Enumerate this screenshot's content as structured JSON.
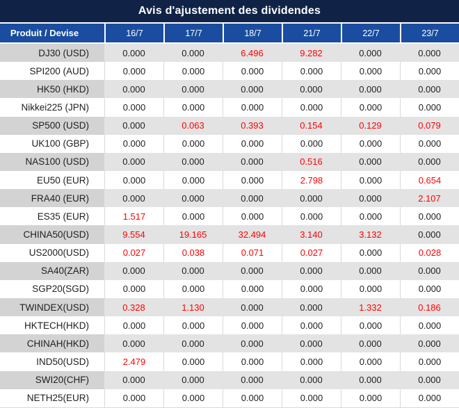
{
  "title": "Avis d'ajustement des dividendes",
  "table": {
    "product_header": "Produit / Devise",
    "date_headers": [
      "16/7",
      "17/7",
      "18/7",
      "21/7",
      "22/7",
      "23/7"
    ],
    "rows": [
      {
        "product": "DJ30 (USD)",
        "values": [
          "0.000",
          "0.000",
          "6.496",
          "9.282",
          "0.000",
          "0.000"
        ]
      },
      {
        "product": "SPI200 (AUD)",
        "values": [
          "0.000",
          "0.000",
          "0.000",
          "0.000",
          "0.000",
          "0.000"
        ]
      },
      {
        "product": "HK50 (HKD)",
        "values": [
          "0.000",
          "0.000",
          "0.000",
          "0.000",
          "0.000",
          "0.000"
        ]
      },
      {
        "product": "Nikkei225 (JPN)",
        "values": [
          "0.000",
          "0.000",
          "0.000",
          "0.000",
          "0.000",
          "0.000"
        ]
      },
      {
        "product": "SP500 (USD)",
        "values": [
          "0.000",
          "0.063",
          "0.393",
          "0.154",
          "0.129",
          "0.079"
        ]
      },
      {
        "product": "UK100 (GBP)",
        "values": [
          "0.000",
          "0.000",
          "0.000",
          "0.000",
          "0.000",
          "0.000"
        ]
      },
      {
        "product": "NAS100 (USD)",
        "values": [
          "0.000",
          "0.000",
          "0.000",
          "0.516",
          "0.000",
          "0.000"
        ]
      },
      {
        "product": "EU50 (EUR)",
        "values": [
          "0.000",
          "0.000",
          "0.000",
          "2.798",
          "0.000",
          "0.654"
        ]
      },
      {
        "product": "FRA40 (EUR)",
        "values": [
          "0.000",
          "0.000",
          "0.000",
          "0.000",
          "0.000",
          "2.107"
        ]
      },
      {
        "product": "ES35 (EUR)",
        "values": [
          "1.517",
          "0.000",
          "0.000",
          "0.000",
          "0.000",
          "0.000"
        ]
      },
      {
        "product": "CHINA50(USD)",
        "values": [
          "9.554",
          "19.165",
          "32.494",
          "3.140",
          "3.132",
          "0.000"
        ]
      },
      {
        "product": "US2000(USD)",
        "values": [
          "0.027",
          "0.038",
          "0.071",
          "0.027",
          "0.000",
          "0.028"
        ]
      },
      {
        "product": "SA40(ZAR)",
        "values": [
          "0.000",
          "0.000",
          "0.000",
          "0.000",
          "0.000",
          "0.000"
        ]
      },
      {
        "product": "SGP20(SGD)",
        "values": [
          "0.000",
          "0.000",
          "0.000",
          "0.000",
          "0.000",
          "0.000"
        ]
      },
      {
        "product": "TWINDEX(USD)",
        "values": [
          "0.328",
          "1.130",
          "0.000",
          "0.000",
          "1.332",
          "0.186"
        ]
      },
      {
        "product": "HKTECH(HKD)",
        "values": [
          "0.000",
          "0.000",
          "0.000",
          "0.000",
          "0.000",
          "0.000"
        ]
      },
      {
        "product": "CHINAH(HKD)",
        "values": [
          "0.000",
          "0.000",
          "0.000",
          "0.000",
          "0.000",
          "0.000"
        ]
      },
      {
        "product": "IND50(USD)",
        "values": [
          "2.479",
          "0.000",
          "0.000",
          "0.000",
          "0.000",
          "0.000"
        ]
      },
      {
        "product": "SWI20(CHF)",
        "values": [
          "0.000",
          "0.000",
          "0.000",
          "0.000",
          "0.000",
          "0.000"
        ]
      },
      {
        "product": "NETH25(EUR)",
        "values": [
          "0.000",
          "0.000",
          "0.000",
          "0.000",
          "0.000",
          "0.000"
        ]
      }
    ]
  },
  "colors": {
    "title_bg": "#102347",
    "header_bg": "#1a4d9f",
    "header_text": "#ffffff",
    "row_gray_product_bg": "#d3d3d3",
    "row_gray_value_bg": "#e3e3e3",
    "row_white_bg": "#ffffff",
    "grid_line": "#d9d9d9",
    "value_text": "#202020",
    "nonzero_value_text": "#ff0000"
  }
}
